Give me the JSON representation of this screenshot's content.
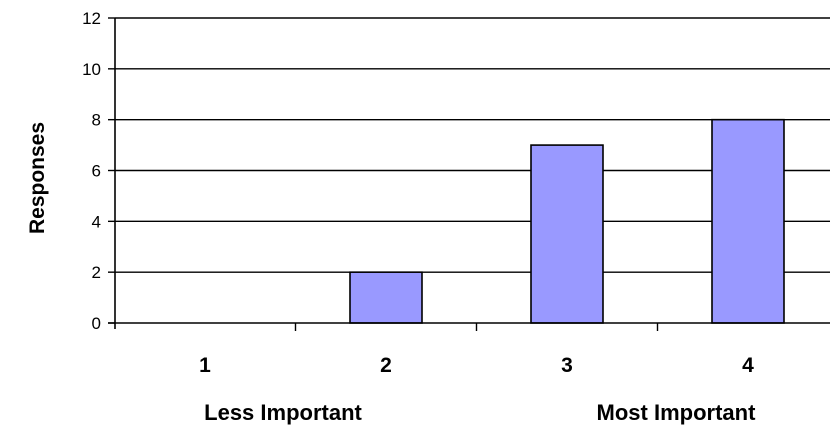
{
  "chart_data": {
    "type": "bar",
    "categories": [
      "1",
      "2",
      "3",
      "4"
    ],
    "values": [
      0,
      2,
      7,
      8
    ],
    "ylabel": "Responses",
    "ylim": [
      0,
      12
    ],
    "yticks": [
      0,
      2,
      4,
      6,
      8,
      10,
      12
    ],
    "grid": true,
    "legend": "none",
    "bar_color": "#9999ff",
    "group_labels": {
      "left": "Less Important",
      "right": "Most Important"
    }
  }
}
